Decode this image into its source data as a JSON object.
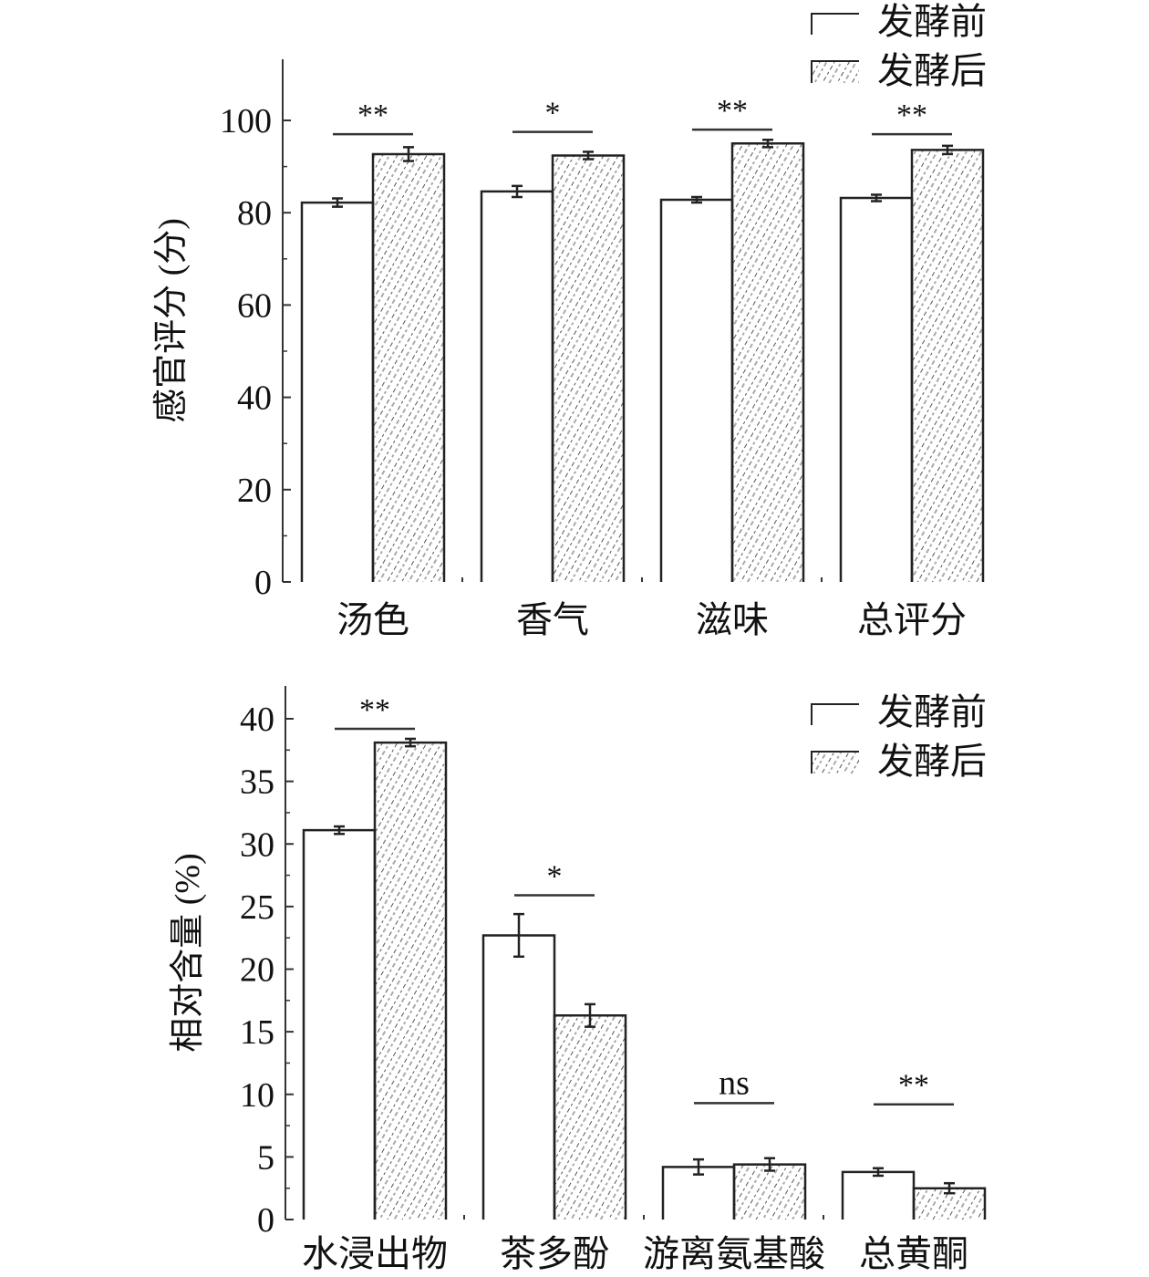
{
  "chart_data": [
    {
      "type": "bar",
      "title": "",
      "xlabel": "",
      "ylabel": "感官评分 (分)",
      "ylim": [
        0,
        110
      ],
      "yticks": [
        0,
        20,
        40,
        60,
        80,
        100
      ],
      "categories": [
        "汤色",
        "香气",
        "滋味",
        "总评分"
      ],
      "series": [
        {
          "name": "发酵前",
          "values": [
            82.2,
            84.6,
            82.8,
            83.2
          ],
          "errors": [
            0.9,
            1.2,
            0.6,
            0.7
          ]
        },
        {
          "name": "发酵后",
          "values": [
            92.7,
            92.4,
            95.0,
            93.6
          ],
          "errors": [
            1.5,
            0.8,
            0.8,
            0.9
          ]
        }
      ],
      "significance": [
        "**",
        "*",
        "**",
        "**"
      ],
      "legend": {
        "position": "top-right",
        "entries": [
          "发酵前",
          "发酵后"
        ]
      },
      "grid": false
    },
    {
      "type": "bar",
      "title": "",
      "xlabel": "",
      "ylabel": "相对含量 (%)",
      "ylim": [
        0,
        42
      ],
      "yticks": [
        0,
        5,
        10,
        15,
        20,
        25,
        30,
        35,
        40
      ],
      "categories": [
        "水浸出物",
        "茶多酚",
        "游离氨基酸",
        "总黄酮"
      ],
      "series": [
        {
          "name": "发酵前",
          "values": [
            31.1,
            22.7,
            4.2,
            3.8
          ],
          "errors": [
            0.3,
            1.7,
            0.6,
            0.3
          ]
        },
        {
          "name": "发酵后",
          "values": [
            38.1,
            16.3,
            4.4,
            2.5
          ],
          "errors": [
            0.3,
            0.9,
            0.5,
            0.4
          ]
        }
      ],
      "significance": [
        "**",
        "*",
        "ns",
        "**"
      ],
      "legend": {
        "position": "top-right",
        "entries": [
          "发酵前",
          "发酵后"
        ]
      },
      "grid": false
    }
  ]
}
